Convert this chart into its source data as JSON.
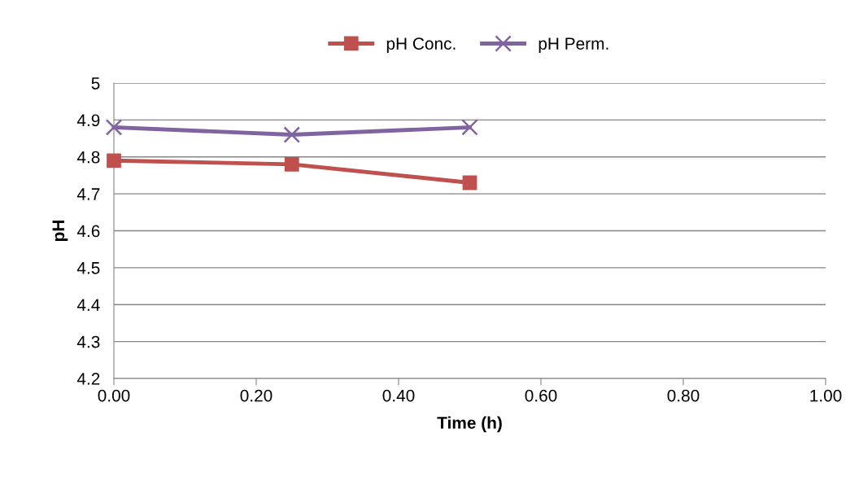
{
  "chart_data": {
    "type": "line",
    "xlabel": "Time (h)",
    "ylabel": "pH",
    "series": [
      {
        "name": "pH Conc.",
        "color": "#c0504d",
        "marker": "square",
        "x": [
          0,
          0.25,
          0.5
        ],
        "values": [
          4.79,
          4.78,
          4.73
        ]
      },
      {
        "name": "pH Perm.",
        "color": "#8064a2",
        "marker": "cross",
        "x": [
          0,
          0.25,
          0.5
        ],
        "values": [
          4.88,
          4.86,
          4.88
        ]
      }
    ],
    "xlim": [
      0,
      1
    ],
    "xticks": [
      {
        "value": 0,
        "label": "0.00"
      },
      {
        "value": 0.2,
        "label": "0.20"
      },
      {
        "value": 0.4,
        "label": "0.40"
      },
      {
        "value": 0.6,
        "label": "0.60"
      },
      {
        "value": 0.8,
        "label": "0.80"
      },
      {
        "value": 1,
        "label": "1.00"
      }
    ],
    "ylim": [
      4.2,
      5
    ],
    "yticks": [
      4.2,
      4.3,
      4.4,
      4.5,
      4.6,
      4.7,
      4.8,
      4.9,
      5
    ],
    "grid": "y",
    "legend": "top",
    "line_style": "solid"
  }
}
